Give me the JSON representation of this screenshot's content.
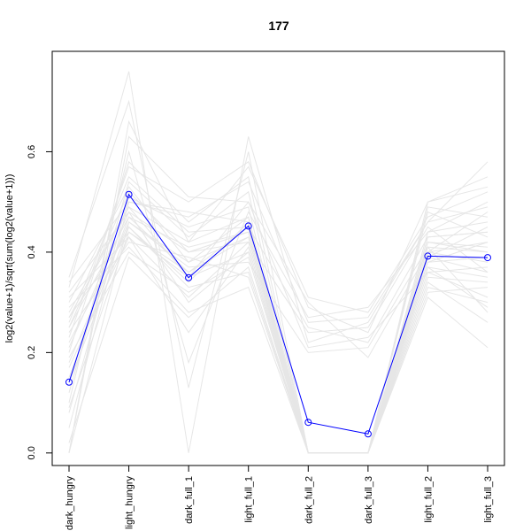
{
  "chart_data": {
    "type": "line",
    "title": "177",
    "xlabel": "",
    "ylabel": "log2(value+1)/sqrt(sum(log2(value+1)))",
    "categories": [
      "dark_hungry",
      "light_hungry",
      "dark_full_1",
      "light_full_1",
      "dark_full_2",
      "dark_full_3",
      "light_full_2",
      "light_full_3"
    ],
    "ylim": [
      -0.025,
      0.8
    ],
    "yticks": [
      0.0,
      0.2,
      0.4,
      0.6
    ],
    "ytick_labels": [
      "0.0",
      "0.2",
      "0.4",
      "0.6"
    ],
    "grid": false,
    "highlight": {
      "color": "#0000ff",
      "values": [
        0.141,
        0.515,
        0.349,
        0.452,
        0.061,
        0.038,
        0.392,
        0.389
      ]
    },
    "background_color": "#e6e6e6",
    "background_series": [
      [
        0.33,
        0.76,
        0.0,
        0.63,
        0.22,
        0.26,
        0.46,
        0.58
      ],
      [
        0.35,
        0.7,
        0.13,
        0.6,
        0.0,
        0.0,
        0.5,
        0.55
      ],
      [
        0.0,
        0.66,
        0.42,
        0.57,
        0.31,
        0.28,
        0.47,
        0.52
      ],
      [
        0.0,
        0.63,
        0.51,
        0.5,
        0.3,
        0.19,
        0.4,
        0.48
      ],
      [
        0.1,
        0.6,
        0.18,
        0.48,
        0.27,
        0.29,
        0.44,
        0.5
      ],
      [
        0.2,
        0.58,
        0.46,
        0.55,
        0.0,
        0.0,
        0.49,
        0.47
      ],
      [
        0.26,
        0.55,
        0.44,
        0.45,
        0.25,
        0.22,
        0.43,
        0.44
      ],
      [
        0.3,
        0.53,
        0.38,
        0.47,
        0.0,
        0.0,
        0.38,
        0.42
      ],
      [
        0.25,
        0.52,
        0.4,
        0.42,
        0.24,
        0.25,
        0.45,
        0.36
      ],
      [
        0.05,
        0.5,
        0.48,
        0.46,
        0.0,
        0.0,
        0.42,
        0.4
      ],
      [
        0.28,
        0.49,
        0.35,
        0.5,
        0.21,
        0.23,
        0.36,
        0.31
      ],
      [
        0.32,
        0.48,
        0.3,
        0.4,
        0.0,
        0.0,
        0.4,
        0.38
      ],
      [
        0.15,
        0.47,
        0.41,
        0.44,
        0.0,
        0.0,
        0.37,
        0.35
      ],
      [
        0.18,
        0.46,
        0.37,
        0.38,
        0.2,
        0.21,
        0.41,
        0.28
      ],
      [
        0.22,
        0.45,
        0.33,
        0.36,
        0.0,
        0.0,
        0.35,
        0.34
      ],
      [
        0.27,
        0.44,
        0.36,
        0.43,
        0.0,
        0.0,
        0.39,
        0.45
      ],
      [
        0.31,
        0.43,
        0.24,
        0.41,
        0.0,
        0.0,
        0.34,
        0.26
      ],
      [
        0.08,
        0.51,
        0.45,
        0.49,
        0.0,
        0.0,
        0.48,
        0.43
      ],
      [
        0.24,
        0.42,
        0.39,
        0.35,
        0.0,
        0.0,
        0.33,
        0.3
      ],
      [
        0.12,
        0.54,
        0.43,
        0.52,
        0.0,
        0.0,
        0.44,
        0.46
      ],
      [
        0.29,
        0.41,
        0.28,
        0.33,
        0.0,
        0.0,
        0.37,
        0.29
      ],
      [
        0.34,
        0.5,
        0.47,
        0.54,
        0.26,
        0.27,
        0.46,
        0.49
      ],
      [
        0.19,
        0.4,
        0.32,
        0.39,
        0.0,
        0.0,
        0.31,
        0.21
      ],
      [
        0.23,
        0.57,
        0.5,
        0.58,
        0.29,
        0.24,
        0.5,
        0.53
      ],
      [
        0.02,
        0.39,
        0.27,
        0.37,
        0.0,
        0.0,
        0.32,
        0.33
      ],
      [
        0.14,
        0.45,
        0.34,
        0.46,
        0.0,
        0.0,
        0.38,
        0.39
      ],
      [
        0.21,
        0.48,
        0.4,
        0.44,
        0.0,
        0.0,
        0.42,
        0.41
      ],
      [
        0.17,
        0.43,
        0.31,
        0.42,
        0.0,
        0.0,
        0.36,
        0.37
      ],
      [
        0.27,
        0.49,
        0.42,
        0.47,
        0.0,
        0.0,
        0.43,
        0.44
      ],
      [
        0.0,
        0.46,
        0.38,
        0.43,
        0.0,
        0.0,
        0.4,
        0.42
      ],
      [
        0.25,
        0.47,
        0.36,
        0.45,
        0.0,
        0.0,
        0.39,
        0.36
      ],
      [
        0.09,
        0.44,
        0.35,
        0.4,
        0.0,
        0.0,
        0.41,
        0.4
      ]
    ]
  }
}
